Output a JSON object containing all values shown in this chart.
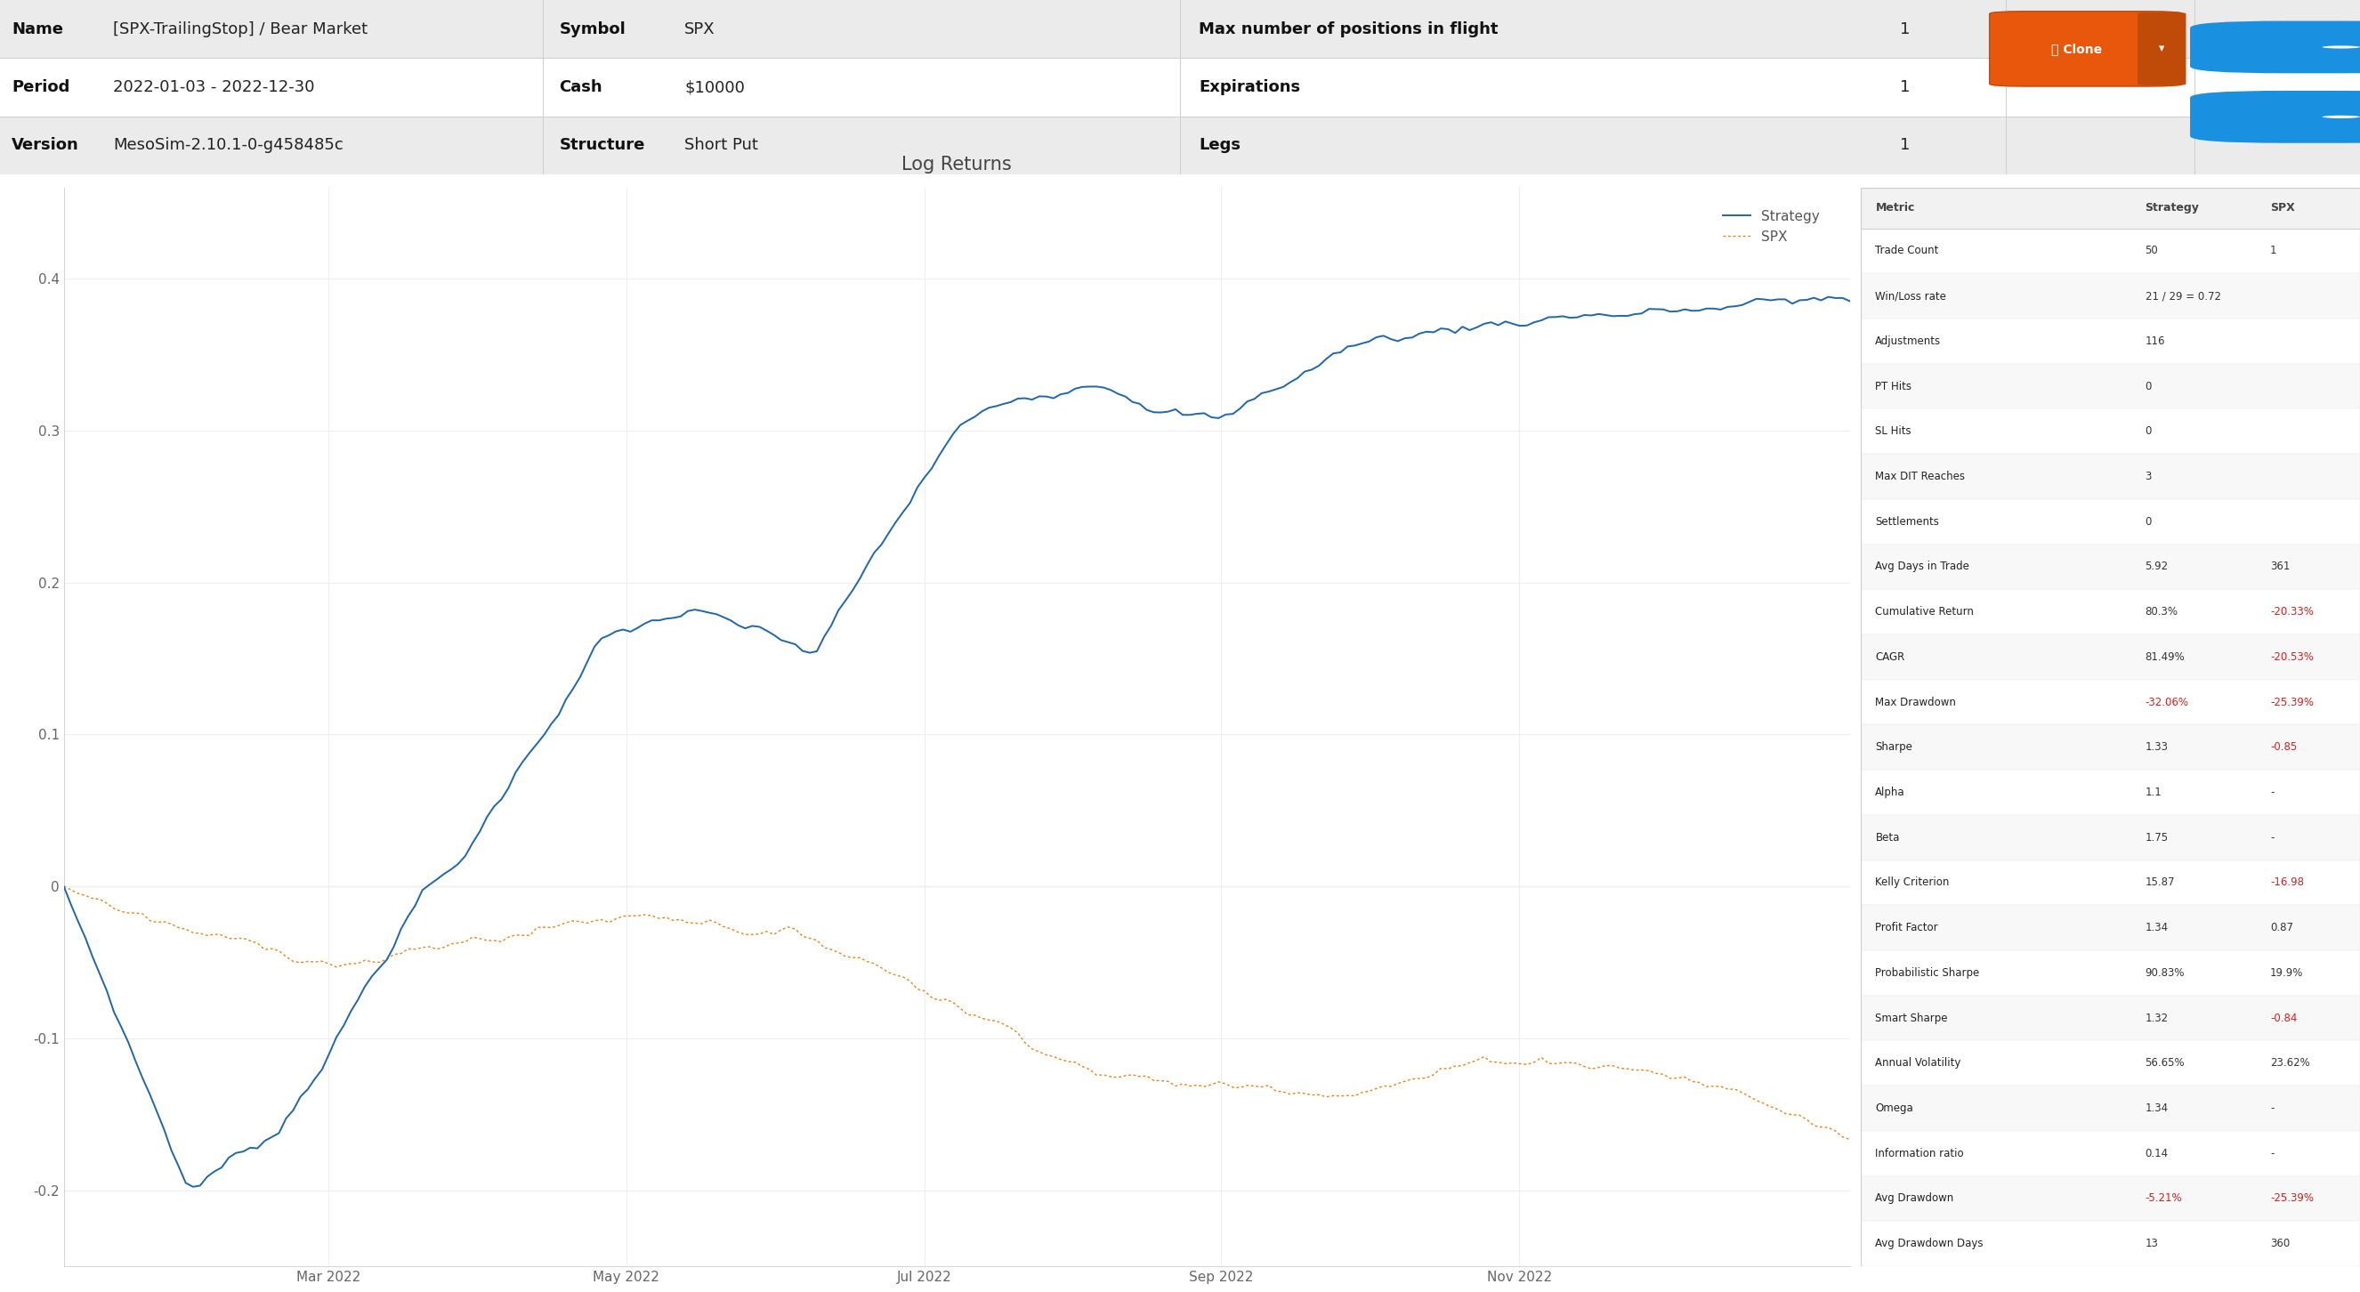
{
  "title_info": {
    "name_label": "Name",
    "name_value": "[SPX-TrailingStop] / Bear Market",
    "period_label": "Period",
    "period_value": "2022-01-03 - 2022-12-30",
    "version_label": "Version",
    "version_value": "MesoSim-2.10.1-0-g458485c",
    "symbol_label": "Symbol",
    "symbol_value": "SPX",
    "cash_label": "Cash",
    "cash_value": "$10000",
    "structure_label": "Structure",
    "structure_value": "Short Put",
    "max_pos_label": "Max number of positions in flight",
    "max_pos_value": "1",
    "expirations_label": "Expirations",
    "expirations_value": "1",
    "legs_label": "Legs",
    "legs_value": "1"
  },
  "chart_title": "Log Returns",
  "strategy_color": "#2066a8",
  "spx_color": "#e8821a",
  "bg_color": "#ffffff",
  "header_row_colors": [
    "#ebebeb",
    "#ffffff",
    "#ebebeb"
  ],
  "divider_color": "#d0d0d0",
  "metrics": [
    {
      "metric": "Trade Count",
      "strategy": "50",
      "spx": "1",
      "strat_neg": false,
      "spx_neg": false
    },
    {
      "metric": "Win/Loss rate",
      "strategy": "21 / 29 = 0.72",
      "spx": "",
      "strat_neg": false,
      "spx_neg": false
    },
    {
      "metric": "Adjustments",
      "strategy": "116",
      "spx": "",
      "strat_neg": false,
      "spx_neg": false
    },
    {
      "metric": "PT Hits",
      "strategy": "0",
      "spx": "",
      "strat_neg": false,
      "spx_neg": false
    },
    {
      "metric": "SL Hits",
      "strategy": "0",
      "spx": "",
      "strat_neg": false,
      "spx_neg": false
    },
    {
      "metric": "Max DIT Reaches",
      "strategy": "3",
      "spx": "",
      "strat_neg": false,
      "spx_neg": false
    },
    {
      "metric": "Settlements",
      "strategy": "0",
      "spx": "",
      "strat_neg": false,
      "spx_neg": false
    },
    {
      "metric": "Avg Days in Trade",
      "strategy": "5.92",
      "spx": "361",
      "strat_neg": false,
      "spx_neg": false
    },
    {
      "metric": "Cumulative Return",
      "strategy": "80.3%",
      "spx": "-20.33%",
      "strat_neg": false,
      "spx_neg": true
    },
    {
      "metric": "CAGR",
      "strategy": "81.49%",
      "spx": "-20.53%",
      "strat_neg": false,
      "spx_neg": true
    },
    {
      "metric": "Max Drawdown",
      "strategy": "-32.06%",
      "spx": "-25.39%",
      "strat_neg": true,
      "spx_neg": true
    },
    {
      "metric": "Sharpe",
      "strategy": "1.33",
      "spx": "-0.85",
      "strat_neg": false,
      "spx_neg": true
    },
    {
      "metric": "Alpha",
      "strategy": "1.1",
      "spx": "-",
      "strat_neg": false,
      "spx_neg": false
    },
    {
      "metric": "Beta",
      "strategy": "1.75",
      "spx": "-",
      "strat_neg": false,
      "spx_neg": false
    },
    {
      "metric": "Kelly Criterion",
      "strategy": "15.87",
      "spx": "-16.98",
      "strat_neg": false,
      "spx_neg": true
    },
    {
      "metric": "Profit Factor",
      "strategy": "1.34",
      "spx": "0.87",
      "strat_neg": false,
      "spx_neg": false
    },
    {
      "metric": "Probabilistic Sharpe",
      "strategy": "90.83%",
      "spx": "19.9%",
      "strat_neg": false,
      "spx_neg": false
    },
    {
      "metric": "Smart Sharpe",
      "strategy": "1.32",
      "spx": "-0.84",
      "strat_neg": false,
      "spx_neg": true
    },
    {
      "metric": "Annual Volatility",
      "strategy": "56.65%",
      "spx": "23.62%",
      "strat_neg": false,
      "spx_neg": false
    },
    {
      "metric": "Omega",
      "strategy": "1.34",
      "spx": "-",
      "strat_neg": false,
      "spx_neg": false
    },
    {
      "metric": "Information ratio",
      "strategy": "0.14",
      "spx": "-",
      "strat_neg": false,
      "spx_neg": false
    },
    {
      "metric": "Avg Drawdown",
      "strategy": "-5.21%",
      "spx": "-25.39%",
      "strat_neg": true,
      "spx_neg": true
    },
    {
      "metric": "Avg Drawdown Days",
      "strategy": "13",
      "spx": "360",
      "strat_neg": false,
      "spx_neg": false
    }
  ],
  "x_tick_labels": [
    "Mar 2022",
    "May 2022",
    "Jul 2022",
    "Sep 2022",
    "Nov 2022"
  ],
  "x_tick_positions": [
    0.148,
    0.315,
    0.482,
    0.648,
    0.815
  ],
  "ylim": [
    -0.25,
    0.46
  ],
  "yticks": [
    -0.2,
    -0.1,
    0.0,
    0.1,
    0.2,
    0.3,
    0.4
  ],
  "neg_color": "#cc2222",
  "pos_color": "#333333",
  "metric_col_color": "#222222",
  "table_header_color": "#444444"
}
